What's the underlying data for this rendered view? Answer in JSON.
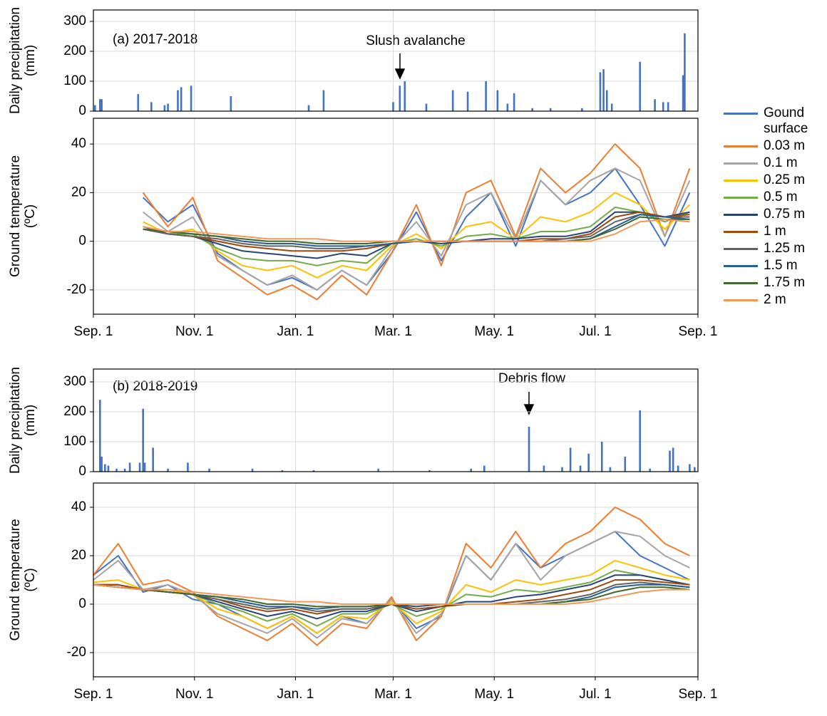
{
  "chart_data": [
    {
      "type": "bar",
      "title": "(a) 2017-2018",
      "annotation": "Slush avalanche",
      "y_label": [
        "Daily precipitation",
        "(mm)"
      ],
      "x": [
        1,
        4,
        5,
        27,
        35,
        43,
        45,
        51,
        53,
        59,
        83,
        130,
        139,
        181,
        185,
        188,
        201,
        217,
        226,
        237,
        244,
        250,
        254,
        265,
        276,
        295,
        306,
        308,
        310,
        313,
        330,
        339,
        344,
        347,
        356,
        357
      ],
      "values": [
        20,
        40,
        40,
        57,
        30,
        20,
        25,
        70,
        80,
        85,
        50,
        20,
        70,
        30,
        85,
        100,
        25,
        70,
        65,
        100,
        70,
        25,
        60,
        10,
        10,
        10,
        130,
        140,
        70,
        25,
        165,
        40,
        30,
        30,
        120,
        260
      ],
      "color": "#4472c4",
      "ylim": [
        0,
        300
      ],
      "yticks": [
        0,
        100,
        200,
        300
      ],
      "grid": true
    },
    {
      "type": "line",
      "y_label": [
        "Ground temperature",
        "(ºC)"
      ],
      "x": [
        0,
        15,
        30,
        45,
        60,
        75,
        90,
        105,
        120,
        135,
        150,
        165,
        180,
        195,
        210,
        225,
        240,
        255,
        270,
        285,
        300,
        315,
        330,
        345,
        360
      ],
      "xlim": [
        0,
        365
      ],
      "xticks": [
        {
          "value": 0,
          "label": "Sep. 1"
        },
        {
          "value": 61,
          "label": "Nov. 1"
        },
        {
          "value": 122,
          "label": "Jan. 1"
        },
        {
          "value": 181,
          "label": "Mar. 1"
        },
        {
          "value": 242,
          "label": "May. 1"
        },
        {
          "value": 303,
          "label": "Jul. 1"
        },
        {
          "value": 365,
          "label": "Sep. 1"
        }
      ],
      "ylim": [
        -30,
        50
      ],
      "yticks": [
        -20,
        0,
        20,
        40
      ],
      "grid": true,
      "series": [
        {
          "name": "Gound surface",
          "color": "#4472c4",
          "values": [
            null,
            null,
            18,
            8,
            15,
            -5,
            -12,
            -18,
            -15,
            -20,
            -12,
            -18,
            -5,
            12,
            -8,
            10,
            20,
            -2,
            25,
            15,
            20,
            30,
            15,
            -2,
            20
          ]
        },
        {
          "name": "0.03 m",
          "color": "#ed7d31",
          "values": [
            null,
            null,
            20,
            6,
            18,
            -8,
            -15,
            -22,
            -18,
            -24,
            -14,
            -22,
            -5,
            15,
            -10,
            20,
            25,
            2,
            30,
            20,
            28,
            40,
            30,
            2,
            30
          ]
        },
        {
          "name": "0.1 m",
          "color": "#a5a5a5",
          "values": [
            null,
            null,
            12,
            4,
            10,
            -6,
            -12,
            -18,
            -14,
            -20,
            -12,
            -18,
            -3,
            8,
            -6,
            15,
            20,
            1,
            25,
            15,
            25,
            30,
            25,
            2,
            25
          ]
        },
        {
          "name": "0.25 m",
          "color": "#ffc000",
          "values": [
            null,
            null,
            8,
            3,
            5,
            -4,
            -10,
            -12,
            -10,
            -15,
            -10,
            -12,
            -2,
            3,
            -3,
            6,
            8,
            1,
            10,
            8,
            12,
            20,
            15,
            5,
            15
          ]
        },
        {
          "name": "0.5 m",
          "color": "#70ad47",
          "values": [
            null,
            null,
            6,
            3,
            3,
            -3,
            -7,
            -8,
            -8,
            -10,
            -8,
            -9,
            -1,
            1,
            -2,
            2,
            3,
            1,
            4,
            4,
            6,
            14,
            12,
            8,
            12
          ]
        },
        {
          "name": "0.75 m",
          "color": "#264478",
          "values": [
            null,
            null,
            6,
            3,
            2,
            -1,
            -4,
            -5,
            -6,
            -7,
            -5,
            -6,
            -1,
            0,
            -1,
            0,
            1,
            1,
            2,
            2,
            4,
            12,
            12,
            10,
            12
          ]
        },
        {
          "name": "1 m",
          "color": "#9e480e",
          "values": [
            null,
            null,
            5,
            3,
            2,
            0,
            -2,
            -3,
            -4,
            -4,
            -4,
            -3,
            -1,
            0,
            0,
            0,
            0,
            0,
            1,
            1,
            3,
            10,
            12,
            10,
            11
          ]
        },
        {
          "name": "1.25 m",
          "color": "#636363",
          "values": [
            null,
            null,
            5,
            3,
            2,
            1,
            -1,
            -2,
            -2,
            -3,
            -3,
            -2,
            -1,
            0,
            0,
            0,
            0,
            0,
            0,
            1,
            2,
            8,
            11,
            10,
            10
          ]
        },
        {
          "name": "1.5 m",
          "color": "#255e91",
          "values": [
            null,
            null,
            5,
            4,
            3,
            2,
            0,
            -1,
            -1,
            -2,
            -2,
            -2,
            -1,
            0,
            0,
            0,
            0,
            0,
            0,
            0,
            1,
            6,
            11,
            10,
            9
          ]
        },
        {
          "name": "1.75 m",
          "color": "#43682b",
          "values": [
            null,
            null,
            5,
            4,
            3,
            2,
            1,
            0,
            0,
            -1,
            -1,
            -1,
            0,
            0,
            0,
            0,
            0,
            0,
            0,
            0,
            1,
            5,
            10,
            9,
            9
          ]
        },
        {
          "name": "2 m",
          "color": "#f1975a",
          "values": [
            null,
            null,
            6,
            4,
            4,
            3,
            2,
            1,
            1,
            1,
            0,
            0,
            0,
            0,
            0,
            0,
            0,
            0,
            0,
            0,
            0,
            3,
            8,
            9,
            8
          ]
        }
      ]
    },
    {
      "type": "bar",
      "title": "(b) 2018-2019",
      "annotation": "Debris flow",
      "y_label": [
        "Daily precipitation",
        "(mm)"
      ],
      "x": [
        4,
        5,
        7,
        9,
        14,
        19,
        22,
        28,
        30,
        31,
        36,
        45,
        57,
        70,
        96,
        114,
        133,
        172,
        203,
        228,
        236,
        263,
        272,
        283,
        288,
        294,
        299,
        307,
        312,
        321,
        330,
        336,
        348,
        350,
        353,
        360,
        363
      ],
      "values": [
        240,
        50,
        25,
        20,
        10,
        10,
        30,
        30,
        210,
        30,
        80,
        10,
        30,
        10,
        10,
        5,
        5,
        10,
        5,
        10,
        20,
        150,
        20,
        15,
        80,
        20,
        60,
        100,
        15,
        50,
        205,
        10,
        70,
        80,
        20,
        25,
        15
      ],
      "color": "#4472c4",
      "ylim": [
        0,
        300
      ],
      "yticks": [
        0,
        100,
        200,
        300
      ],
      "grid": true
    },
    {
      "type": "line",
      "y_label": [
        "Ground temperature",
        "(ºC)"
      ],
      "x": [
        0,
        15,
        30,
        45,
        60,
        75,
        90,
        105,
        120,
        135,
        150,
        165,
        180,
        195,
        210,
        225,
        240,
        255,
        270,
        285,
        300,
        315,
        330,
        345,
        360
      ],
      "xlim": [
        0,
        365
      ],
      "xticks": [
        {
          "value": 0,
          "label": "Sep. 1"
        },
        {
          "value": 61,
          "label": "Nov. 1"
        },
        {
          "value": 122,
          "label": "Jan. 1"
        },
        {
          "value": 181,
          "label": "Mar. 1"
        },
        {
          "value": 242,
          "label": "May. 1"
        },
        {
          "value": 303,
          "label": "Jul. 1"
        },
        {
          "value": 365,
          "label": "Sep. 1"
        }
      ],
      "ylim": [
        -30,
        50
      ],
      "yticks": [
        -20,
        0,
        20,
        40
      ],
      "grid": true,
      "series": [
        {
          "name": "Gound surface",
          "color": "#4472c4",
          "values": [
            12,
            20,
            5,
            8,
            2,
            0,
            -5,
            -10,
            -5,
            -12,
            -5,
            -8,
            2,
            -10,
            -5,
            20,
            10,
            25,
            15,
            20,
            25,
            30,
            20,
            15,
            10
          ]
        },
        {
          "name": "0.03 m",
          "color": "#ed7d31",
          "values": [
            12,
            25,
            8,
            10,
            5,
            -5,
            -10,
            -15,
            -8,
            -17,
            -8,
            -10,
            3,
            -15,
            -5,
            25,
            15,
            30,
            15,
            25,
            30,
            40,
            35,
            25,
            20
          ]
        },
        {
          "name": "0.1 m",
          "color": "#a5a5a5",
          "values": [
            10,
            18,
            6,
            8,
            4,
            -4,
            -8,
            -12,
            -6,
            -14,
            -6,
            -8,
            2,
            -12,
            -4,
            20,
            10,
            25,
            10,
            20,
            25,
            30,
            28,
            20,
            15
          ]
        },
        {
          "name": "0.25 m",
          "color": "#ffc000",
          "values": [
            9,
            10,
            6,
            6,
            4,
            -2,
            -5,
            -10,
            -5,
            -12,
            -5,
            -6,
            1,
            -8,
            -3,
            8,
            5,
            10,
            8,
            10,
            12,
            18,
            15,
            12,
            10
          ]
        },
        {
          "name": "0.5 m",
          "color": "#70ad47",
          "values": [
            8,
            8,
            6,
            5,
            4,
            0,
            -3,
            -7,
            -4,
            -9,
            -4,
            -4,
            0,
            -5,
            -2,
            4,
            3,
            6,
            5,
            7,
            9,
            14,
            12,
            10,
            8
          ]
        },
        {
          "name": "0.75 m",
          "color": "#264478",
          "values": [
            8,
            8,
            6,
            5,
            4,
            1,
            -2,
            -5,
            -3,
            -6,
            -3,
            -3,
            0,
            -3,
            -1,
            1,
            1,
            3,
            4,
            6,
            8,
            12,
            12,
            10,
            8
          ]
        },
        {
          "name": "1 m",
          "color": "#9e480e",
          "values": [
            8,
            8,
            6,
            5,
            4,
            2,
            -1,
            -3,
            -2,
            -4,
            -2,
            -2,
            0,
            -2,
            -1,
            0,
            0,
            1,
            2,
            4,
            6,
            10,
            10,
            9,
            8
          ]
        },
        {
          "name": "1.25 m",
          "color": "#636363",
          "values": [
            8,
            7,
            6,
            5,
            4,
            2,
            0,
            -2,
            -1,
            -3,
            -2,
            -2,
            0,
            -1,
            0,
            0,
            0,
            0,
            1,
            2,
            4,
            8,
            9,
            8,
            7
          ]
        },
        {
          "name": "1.5 m",
          "color": "#255e91",
          "values": [
            8,
            7,
            6,
            5,
            4,
            3,
            1,
            -1,
            -1,
            -2,
            -1,
            -1,
            0,
            -1,
            0,
            0,
            0,
            0,
            0,
            1,
            3,
            7,
            8,
            8,
            7
          ]
        },
        {
          "name": "1.75 m",
          "color": "#43682b",
          "values": [
            8,
            7,
            6,
            5,
            4,
            3,
            2,
            0,
            0,
            -1,
            -1,
            -1,
            0,
            0,
            0,
            0,
            0,
            0,
            0,
            1,
            2,
            5,
            7,
            7,
            6
          ]
        },
        {
          "name": "2 m",
          "color": "#f1975a",
          "values": [
            8,
            7,
            6,
            6,
            5,
            4,
            3,
            2,
            1,
            1,
            0,
            0,
            0,
            0,
            0,
            0,
            0,
            0,
            0,
            0,
            1,
            3,
            5,
            6,
            6
          ]
        }
      ]
    }
  ]
}
